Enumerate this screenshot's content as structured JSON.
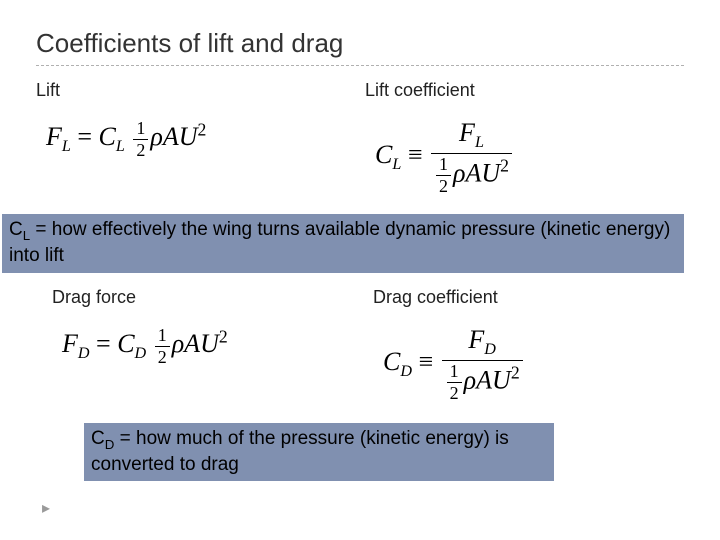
{
  "title": "Coefficients of lift and drag",
  "labels": {
    "lift": "Lift",
    "lift_coef": "Lift coefficient",
    "drag_force": "Drag force",
    "drag_coef": "Drag coefficient"
  },
  "formulas": {
    "FL_var": "F",
    "FL_sub": "L",
    "CL_var": "C",
    "CL_sub": "L",
    "FD_var": "F",
    "FD_sub": "D",
    "CD_var": "C",
    "CD_sub": "D",
    "half_num": "1",
    "half_den": "2",
    "rho": "ρ",
    "A": "A",
    "U": "U",
    "sq": "2",
    "eq": "=",
    "equiv": "≡"
  },
  "callouts": {
    "cl_prefix": "C",
    "cl_sub": "L",
    "cl_text": " = how effectively the wing turns available dynamic pressure (kinetic energy) into lift",
    "cd_prefix": "C",
    "cd_sub": "D",
    "cd_text": " = how much of the pressure (kinetic energy) is converted to drag"
  },
  "colors": {
    "callout_bg": "#8090b0",
    "text": "#000000",
    "title": "#333333",
    "rule": "#b0b0b0"
  }
}
